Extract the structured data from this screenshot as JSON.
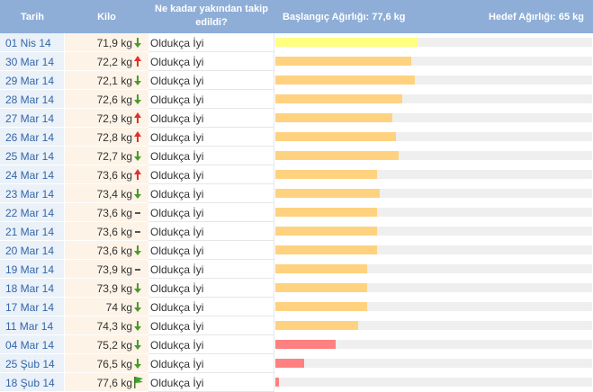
{
  "headers": {
    "date": "Tarih",
    "kilo": "Kilo",
    "question": "Ne kadar yakından takip edildi?",
    "start": "Başlangıç Ağırlığı: 77,6 kg",
    "goal": "Hedef Ağırlığı: 65 kg"
  },
  "colors": {
    "header_bg": "#8eaed7",
    "down_arrow": "#4a9a2a",
    "up_arrow": "#e03030",
    "flag": "#3aa52a",
    "bar_latest": "#ffff80",
    "bar_normal": "#ffd27f",
    "bar_early": "#ff8080",
    "track": "#efefef"
  },
  "rows": [
    {
      "date": "01 Nis 14",
      "weight": "71,9 kg",
      "trend": "down",
      "tracking": "Oldukça İyi",
      "progress": 0.45,
      "bar": "latest"
    },
    {
      "date": "30 Mar 14",
      "weight": "72,2 kg",
      "trend": "up",
      "tracking": "Oldukça İyi",
      "progress": 0.43,
      "bar": "normal"
    },
    {
      "date": "29 Mar 14",
      "weight": "72,1 kg",
      "trend": "down",
      "tracking": "Oldukça İyi",
      "progress": 0.44,
      "bar": "normal"
    },
    {
      "date": "28 Mar 14",
      "weight": "72,6 kg",
      "trend": "down",
      "tracking": "Oldukça İyi",
      "progress": 0.4,
      "bar": "normal"
    },
    {
      "date": "27 Mar 14",
      "weight": "72,9 kg",
      "trend": "up",
      "tracking": "Oldukça İyi",
      "progress": 0.37,
      "bar": "normal"
    },
    {
      "date": "26 Mar 14",
      "weight": "72,8 kg",
      "trend": "up",
      "tracking": "Oldukça İyi",
      "progress": 0.38,
      "bar": "normal"
    },
    {
      "date": "25 Mar 14",
      "weight": "72,7 kg",
      "trend": "down",
      "tracking": "Oldukça İyi",
      "progress": 0.39,
      "bar": "normal"
    },
    {
      "date": "24 Mar 14",
      "weight": "73,6 kg",
      "trend": "up",
      "tracking": "Oldukça İyi",
      "progress": 0.32,
      "bar": "normal"
    },
    {
      "date": "23 Mar 14",
      "weight": "73,4 kg",
      "trend": "down",
      "tracking": "Oldukça İyi",
      "progress": 0.33,
      "bar": "normal"
    },
    {
      "date": "22 Mar 14",
      "weight": "73,6 kg",
      "trend": "same",
      "tracking": "Oldukça İyi",
      "progress": 0.32,
      "bar": "normal"
    },
    {
      "date": "21 Mar 14",
      "weight": "73,6 kg",
      "trend": "same",
      "tracking": "Oldukça İyi",
      "progress": 0.32,
      "bar": "normal"
    },
    {
      "date": "20 Mar 14",
      "weight": "73,6 kg",
      "trend": "down",
      "tracking": "Oldukça İyi",
      "progress": 0.32,
      "bar": "normal"
    },
    {
      "date": "19 Mar 14",
      "weight": "73,9 kg",
      "trend": "same",
      "tracking": "Oldukça İyi",
      "progress": 0.29,
      "bar": "normal"
    },
    {
      "date": "18 Mar 14",
      "weight": "73,9 kg",
      "trend": "down",
      "tracking": "Oldukça İyi",
      "progress": 0.29,
      "bar": "normal"
    },
    {
      "date": "17 Mar 14",
      "weight": "74 kg",
      "trend": "down",
      "tracking": "Oldukça İyi",
      "progress": 0.29,
      "bar": "normal"
    },
    {
      "date": "11 Mar 14",
      "weight": "74,3 kg",
      "trend": "down",
      "tracking": "Oldukça İyi",
      "progress": 0.26,
      "bar": "normal"
    },
    {
      "date": "04 Mar 14",
      "weight": "75,2 kg",
      "trend": "down",
      "tracking": "Oldukça İyi",
      "progress": 0.19,
      "bar": "early"
    },
    {
      "date": "25 Şub 14",
      "weight": "76,5 kg",
      "trend": "down",
      "tracking": "Oldukça İyi",
      "progress": 0.09,
      "bar": "early"
    },
    {
      "date": "18 Şub 14",
      "weight": "77,6 kg",
      "trend": "flag",
      "tracking": "Oldukça İyi",
      "progress": 0.01,
      "bar": "early"
    }
  ]
}
